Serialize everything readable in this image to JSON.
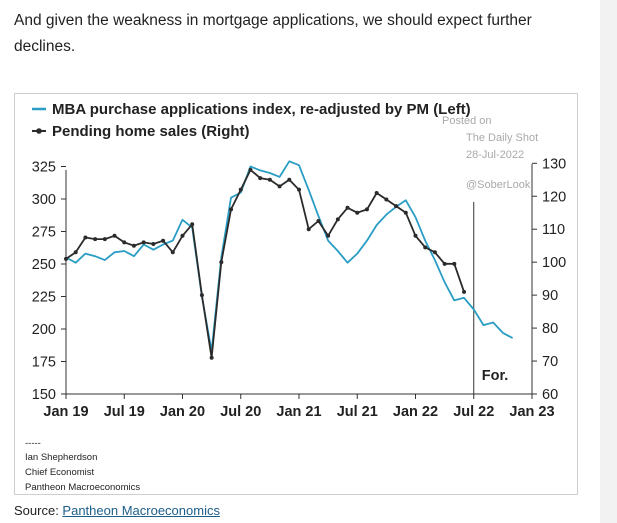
{
  "intro_text": "And given the weakness in mortgage applications, we should expect further declines.",
  "watermark": {
    "posted_on": "Posted on",
    "site": "The Daily Shot",
    "date": "28-Jul-2022",
    "handle": "@SoberLook"
  },
  "forecast_label": "For.",
  "signature": {
    "dashes": "-----",
    "name": "Ian Shepherdson",
    "role": "Chief Economist",
    "company": "Pantheon Macroeconomics"
  },
  "source": {
    "prefix": "Source: ",
    "link_text": "Pantheon Macroeconomics"
  },
  "colors": {
    "mba_series": "#2a9dc4",
    "pending_series": "#2b2b2b",
    "link": "#1a5e8a"
  },
  "chart_data": {
    "type": "line",
    "title": "",
    "legend_placement": "top-left",
    "grid": false,
    "x_tick_labels": [
      "Jan 19",
      "Jul 19",
      "Jan 20",
      "Jul 20",
      "Jan 21",
      "Jul 21",
      "Jan 22",
      "Jul 22",
      "Jan 23"
    ],
    "x_range": [
      "Jan 19",
      "Jan 23"
    ],
    "left_axis": {
      "ylim": [
        150,
        330
      ],
      "ticks": [
        150,
        175,
        200,
        225,
        250,
        275,
        300,
        325
      ]
    },
    "right_axis": {
      "ylim": [
        60,
        131
      ],
      "ticks": [
        60,
        70,
        80,
        90,
        100,
        110,
        120,
        130
      ]
    },
    "forecast_start": "Jul 22",
    "series": [
      {
        "name": "MBA purchase applications index, re-adjusted by PM (Left)",
        "axis": "left",
        "marker": "none",
        "points": [
          [
            "Jan 19",
            255
          ],
          [
            "Feb 19",
            251
          ],
          [
            "Mar 19",
            258
          ],
          [
            "Apr 19",
            256
          ],
          [
            "May 19",
            253
          ],
          [
            "Jun 19",
            259
          ],
          [
            "Jul 19",
            260
          ],
          [
            "Aug 19",
            256
          ],
          [
            "Sep 19",
            265
          ],
          [
            "Oct 19",
            261
          ],
          [
            "Nov 19",
            265
          ],
          [
            "Dec 19",
            268
          ],
          [
            "Jan 20",
            284
          ],
          [
            "Feb 20",
            278
          ],
          [
            "Mar 20",
            225
          ],
          [
            "Apr 20",
            183
          ],
          [
            "May 20",
            255
          ],
          [
            "Jun 20",
            301
          ],
          [
            "Jul 20",
            305
          ],
          [
            "Aug 20",
            325
          ],
          [
            "Sep 20",
            322
          ],
          [
            "Oct 20",
            320
          ],
          [
            "Nov 20",
            317
          ],
          [
            "Dec 20",
            329
          ],
          [
            "Jan 21",
            326
          ],
          [
            "Feb 21",
            307
          ],
          [
            "Mar 21",
            287
          ],
          [
            "Apr 21",
            268
          ],
          [
            "May 21",
            260
          ],
          [
            "Jun 21",
            251
          ],
          [
            "Jul 21",
            258
          ],
          [
            "Aug 21",
            268
          ],
          [
            "Sep 21",
            280
          ],
          [
            "Oct 21",
            288
          ],
          [
            "Nov 21",
            294
          ],
          [
            "Dec 21",
            299
          ],
          [
            "Jan 22",
            286
          ],
          [
            "Feb 22",
            268
          ],
          [
            "Mar 22",
            253
          ],
          [
            "Apr 22",
            236
          ],
          [
            "May 22",
            222
          ],
          [
            "Jun 22",
            224
          ],
          [
            "Jul 22",
            215
          ],
          [
            "Aug 22",
            203
          ],
          [
            "Sep 22",
            205
          ],
          [
            "Oct 22",
            197
          ],
          [
            "Nov 22",
            193
          ]
        ]
      },
      {
        "name": "Pending home sales (Right)",
        "axis": "right",
        "marker": "dot",
        "points": [
          [
            "Jan 19",
            101.0
          ],
          [
            "Feb 19",
            103.0
          ],
          [
            "Mar 19",
            107.5
          ],
          [
            "Apr 19",
            107.0
          ],
          [
            "May 19",
            107.0
          ],
          [
            "Jun 19",
            108.0
          ],
          [
            "Jul 19",
            106.0
          ],
          [
            "Aug 19",
            105.0
          ],
          [
            "Sep 19",
            106.0
          ],
          [
            "Oct 19",
            105.5
          ],
          [
            "Nov 19",
            106.5
          ],
          [
            "Dec 19",
            103.0
          ],
          [
            "Jan 20",
            108.0
          ],
          [
            "Feb 20",
            111.5
          ],
          [
            "Mar 20",
            90.0
          ],
          [
            "Apr 20",
            71.0
          ],
          [
            "May 20",
            100.0
          ],
          [
            "Jun 20",
            116.0
          ],
          [
            "Jul 20",
            122.0
          ],
          [
            "Aug 20",
            128.0
          ],
          [
            "Sep 20",
            125.5
          ],
          [
            "Oct 20",
            125.0
          ],
          [
            "Nov 20",
            123.0
          ],
          [
            "Dec 20",
            125.0
          ],
          [
            "Jan 21",
            122.0
          ],
          [
            "Feb 21",
            110.0
          ],
          [
            "Mar 21",
            112.5
          ],
          [
            "Apr 21",
            108.0
          ],
          [
            "May 21",
            113.0
          ],
          [
            "Jun 21",
            116.5
          ],
          [
            "Jul 21",
            115.0
          ],
          [
            "Aug 21",
            116.0
          ],
          [
            "Sep 21",
            121.0
          ],
          [
            "Oct 21",
            119.0
          ],
          [
            "Nov 21",
            117.0
          ],
          [
            "Dec 21",
            115.0
          ],
          [
            "Jan 22",
            108.0
          ],
          [
            "Feb 22",
            104.5
          ],
          [
            "Mar 22",
            103.0
          ],
          [
            "Apr 22",
            99.5
          ],
          [
            "May 22",
            99.5
          ],
          [
            "Jun 22",
            91.0
          ]
        ]
      }
    ]
  }
}
